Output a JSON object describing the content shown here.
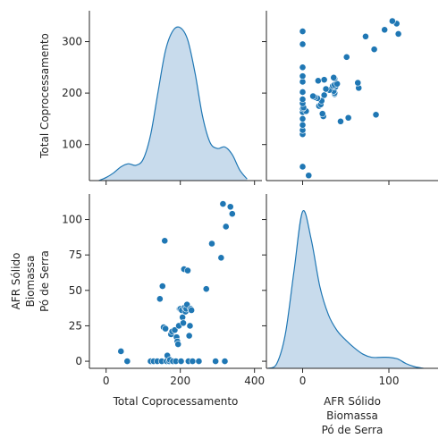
{
  "chart_data": {
    "type": "scatter",
    "kind": "pairplot",
    "variables": [
      "Total Coprocessamento",
      "AFR Sólido\nBiomassa\nPó de Serra"
    ],
    "labels": {
      "left_col_xlabel": "Total Coprocessamento",
      "right_col_xlabel_lines": [
        "AFR Sólido",
        "Biomassa",
        "Pó de Serra"
      ],
      "top_row_ylabel": "Total Coprocessamento",
      "bottom_row_ylabel_lines": [
        "AFR Sólido",
        "Biomassa",
        "Pó de Serra"
      ]
    },
    "axes": {
      "total": {
        "lim": [
          -45,
          420
        ],
        "ticks": [
          0,
          200,
          400
        ]
      },
      "total_y": {
        "lim": [
          30,
          360
        ],
        "ticks": [
          100,
          200,
          300
        ]
      },
      "afr": {
        "lim": [
          -5,
          118
        ],
        "ticks": [
          0,
          25,
          50,
          75,
          100
        ]
      },
      "afr_x": {
        "lim": [
          -42,
          157
        ],
        "ticks": [
          0,
          100
        ]
      }
    },
    "points": [
      {
        "total": 40,
        "afr": 7
      },
      {
        "total": 57,
        "afr": 0
      },
      {
        "total": 120,
        "afr": 0
      },
      {
        "total": 128,
        "afr": 0
      },
      {
        "total": 138,
        "afr": 0
      },
      {
        "total": 145,
        "afr": 44
      },
      {
        "total": 150,
        "afr": 0
      },
      {
        "total": 152,
        "afr": 53
      },
      {
        "total": 155,
        "afr": 24
      },
      {
        "total": 158,
        "afr": 85
      },
      {
        "total": 160,
        "afr": 23
      },
      {
        "total": 163,
        "afr": 0
      },
      {
        "total": 165,
        "afr": 4
      },
      {
        "total": 170,
        "afr": 0
      },
      {
        "total": 172,
        "afr": 1
      },
      {
        "total": 175,
        "afr": 19
      },
      {
        "total": 178,
        "afr": 21
      },
      {
        "total": 180,
        "afr": 0
      },
      {
        "total": 185,
        "afr": 22
      },
      {
        "total": 188,
        "afr": 0
      },
      {
        "total": 190,
        "afr": 17
      },
      {
        "total": 192,
        "afr": 14
      },
      {
        "total": 194,
        "afr": 12
      },
      {
        "total": 196,
        "afr": 25
      },
      {
        "total": 198,
        "afr": 37
      },
      {
        "total": 200,
        "afr": 37
      },
      {
        "total": 202,
        "afr": 0
      },
      {
        "total": 204,
        "afr": 36
      },
      {
        "total": 206,
        "afr": 31
      },
      {
        "total": 208,
        "afr": 27
      },
      {
        "total": 210,
        "afr": 65
      },
      {
        "total": 212,
        "afr": 38
      },
      {
        "total": 214,
        "afr": 35
      },
      {
        "total": 216,
        "afr": 37
      },
      {
        "total": 218,
        "afr": 40
      },
      {
        "total": 220,
        "afr": 64
      },
      {
        "total": 222,
        "afr": 0
      },
      {
        "total": 224,
        "afr": 18
      },
      {
        "total": 226,
        "afr": 25
      },
      {
        "total": 228,
        "afr": 37
      },
      {
        "total": 230,
        "afr": 36
      },
      {
        "total": 233,
        "afr": 0
      },
      {
        "total": 250,
        "afr": 0
      },
      {
        "total": 270,
        "afr": 51
      },
      {
        "total": 285,
        "afr": 83
      },
      {
        "total": 295,
        "afr": 0
      },
      {
        "total": 310,
        "afr": 73
      },
      {
        "total": 315,
        "afr": 111
      },
      {
        "total": 320,
        "afr": 0
      },
      {
        "total": 323,
        "afr": 95
      },
      {
        "total": 335,
        "afr": 109
      },
      {
        "total": 340,
        "afr": 104
      }
    ],
    "kde_total": {
      "x": [
        -20,
        0,
        20,
        40,
        60,
        80,
        100,
        120,
        140,
        160,
        180,
        200,
        220,
        240,
        260,
        280,
        300,
        320,
        340,
        360,
        380
      ],
      "density": [
        0.0,
        0.02,
        0.05,
        0.09,
        0.11,
        0.1,
        0.14,
        0.3,
        0.58,
        0.85,
        0.98,
        1.0,
        0.92,
        0.7,
        0.42,
        0.25,
        0.21,
        0.22,
        0.17,
        0.07,
        0.01
      ]
    },
    "kde_afr": {
      "x": [
        -40,
        -30,
        -20,
        -10,
        0,
        10,
        20,
        30,
        40,
        50,
        60,
        70,
        80,
        90,
        100,
        110,
        120,
        130,
        140
      ],
      "density": [
        0.0,
        0.03,
        0.22,
        0.62,
        1.0,
        0.82,
        0.52,
        0.34,
        0.24,
        0.18,
        0.13,
        0.09,
        0.07,
        0.07,
        0.07,
        0.06,
        0.03,
        0.01,
        0.0
      ]
    },
    "colors": {
      "point": "#1f77b4",
      "kde_fill": "#aac7e2",
      "kde_line": "#1f77b4",
      "axis": "#262626"
    }
  }
}
